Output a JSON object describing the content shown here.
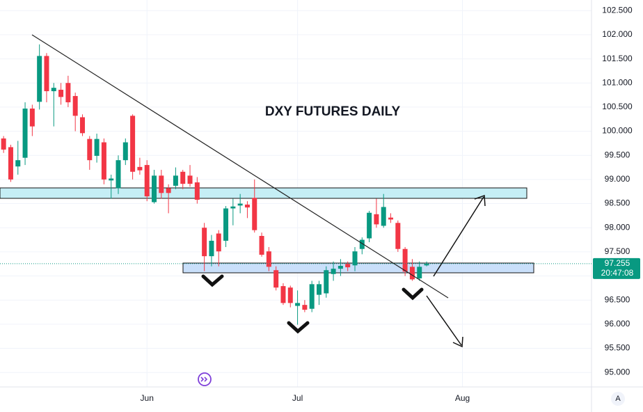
{
  "chart_data": {
    "type": "candlestick",
    "title": "DXY FUTURES DAILY",
    "open": [
      99.85,
      99.67,
      99.27,
      99.45,
      100.47,
      100.61,
      101.56,
      100.83,
      100.86,
      101.0,
      100.73,
      100.29,
      99.84,
      99.49,
      99.77,
      98.98,
      98.82,
      99.4,
      100.32,
      99.26,
      99.3,
      98.53,
      99.08,
      98.82,
      98.87,
      99.16,
      99.08,
      98.94,
      98.0,
      97.41,
      97.88,
      97.73,
      98.4,
      98.46,
      98.48,
      98.62,
      97.83,
      97.51,
      97.12,
      96.79,
      96.76,
      96.38,
      96.4,
      96.32,
      96.61,
      96.64,
      97.04,
      97.15,
      97.25,
      97.22,
      97.56,
      97.78,
      98.28,
      98.04,
      98.21,
      98.1,
      97.56,
      97.19,
      96.95,
      97.22
    ],
    "high": [
      99.9,
      99.72,
      99.8,
      100.6,
      100.55,
      101.8,
      101.62,
      101.0,
      101.0,
      101.15,
      100.8,
      100.35,
      99.9,
      99.95,
      99.85,
      99.1,
      99.5,
      99.85,
      100.35,
      99.45,
      99.4,
      99.2,
      99.2,
      98.9,
      99.25,
      99.2,
      99.3,
      99.05,
      98.1,
      97.85,
      97.95,
      98.45,
      98.6,
      98.7,
      98.55,
      99.0,
      97.9,
      97.6,
      97.2,
      96.85,
      96.8,
      96.7,
      96.5,
      96.9,
      96.9,
      97.2,
      97.3,
      97.35,
      97.3,
      97.6,
      97.8,
      98.35,
      98.6,
      98.7,
      98.3,
      98.15,
      97.6,
      97.35,
      97.3,
      97.3
    ],
    "low": [
      99.55,
      98.95,
      99.1,
      99.3,
      99.9,
      100.45,
      100.6,
      100.1,
      100.55,
      100.5,
      100.0,
      99.9,
      99.2,
      99.35,
      98.9,
      98.6,
      98.7,
      99.3,
      99.0,
      99.1,
      98.55,
      98.5,
      98.6,
      98.3,
      98.8,
      98.8,
      98.85,
      98.5,
      97.1,
      97.2,
      97.2,
      97.6,
      98.05,
      98.3,
      98.2,
      97.9,
      97.4,
      97.1,
      96.7,
      96.4,
      96.35,
      95.99,
      96.25,
      96.25,
      96.4,
      96.55,
      96.9,
      97.0,
      97.1,
      97.1,
      97.45,
      97.7,
      98.0,
      98.0,
      98.1,
      97.5,
      97.0,
      96.9,
      96.9,
      97.2
    ],
    "close": [
      99.62,
      99.0,
      99.4,
      100.47,
      100.1,
      101.56,
      100.83,
      100.9,
      100.71,
      100.6,
      100.32,
      99.96,
      99.4,
      99.84,
      99.0,
      99.02,
      99.4,
      99.77,
      99.16,
      99.19,
      98.65,
      99.08,
      98.72,
      98.72,
      99.08,
      98.91,
      98.91,
      98.58,
      97.41,
      97.73,
      97.51,
      98.4,
      98.44,
      98.5,
      98.42,
      97.95,
      97.44,
      97.19,
      96.76,
      96.44,
      96.44,
      96.44,
      96.3,
      96.83,
      96.83,
      97.12,
      97.15,
      97.21,
      97.18,
      97.51,
      97.75,
      98.31,
      98.07,
      98.43,
      98.17,
      97.56,
      97.09,
      96.93,
      97.19,
      97.25
    ],
    "up_color": "#089981",
    "down_color": "#f23645",
    "xlim": [
      -0.5,
      82
    ],
    "xticks": [
      {
        "value": 20,
        "label": "Jun"
      },
      {
        "value": 41,
        "label": "Jul"
      },
      {
        "value": 64,
        "label": "Aug"
      }
    ],
    "ylim": [
      94.7,
      102.72
    ],
    "yticks": [
      {
        "value": 95,
        "label": "95.000"
      },
      {
        "value": 95.5,
        "label": "95.500"
      },
      {
        "value": 96,
        "label": "96.000"
      },
      {
        "value": 96.5,
        "label": "96.500"
      },
      {
        "value": 97,
        "label": "97.000"
      },
      {
        "value": 97.5,
        "label": "97.500"
      },
      {
        "value": 98,
        "label": "98.000"
      },
      {
        "value": 98.5,
        "label": "98.500"
      },
      {
        "value": 99,
        "label": "99.000"
      },
      {
        "value": 99.5,
        "label": "99.500"
      },
      {
        "value": 100,
        "label": "100.000"
      },
      {
        "value": 100.5,
        "label": "100.500"
      },
      {
        "value": 101,
        "label": "101.000"
      },
      {
        "value": 101.5,
        "label": "101.500"
      },
      {
        "value": 102,
        "label": "102.000"
      },
      {
        "value": 102.5,
        "label": "102.500"
      }
    ],
    "grid": true,
    "last_price": 97.255,
    "countdown": "20:47:08"
  }
}
